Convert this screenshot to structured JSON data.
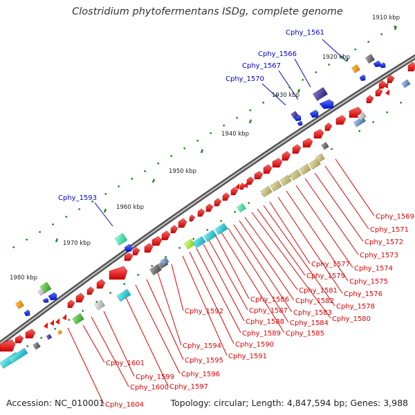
{
  "title": "Clostridium phytofermentans ISDg, complete genome",
  "footer": {
    "accession": "Accession: NC_010001",
    "summary": "Topology: circular; Length: 4,847,594 bp; Genes: 3,988"
  },
  "ticks": [
    "1910 kbp",
    "1920 kbp",
    "1930 kbp",
    "1940 kbp",
    "1950 kbp",
    "1960 kbp",
    "1970 kbp",
    "1980 kbp"
  ],
  "blue_labels": [
    "Cphy_1561",
    "Cphy_1566",
    "Cphy_1567",
    "Cphy_1570",
    "Cphy_1593"
  ],
  "red_labels": [
    "Cphy_1569",
    "Cphy_1571",
    "Cphy_1572",
    "Cphy_1573",
    "Cphy_1574",
    "Cphy_1575",
    "Cphy_1576",
    "Cphy_1577",
    "Cphy_1578",
    "Cphy_1579",
    "Cphy_1580",
    "Cphy_1581",
    "Cphy_1582",
    "Cphy_1583",
    "Cphy_1584",
    "Cphy_1585",
    "Cphy_1586",
    "Cphy_1587",
    "Cphy_1588",
    "Cphy_1589",
    "Cphy_1590",
    "Cphy_1591",
    "Cphy_1592",
    "Cphy_1594",
    "Cphy_1595",
    "Cphy_1596",
    "Cphy_1597",
    "Cphy_1599",
    "Cphy_1600",
    "Cphy_1601",
    "Cphy_1604"
  ],
  "colors": {
    "backbone": "#7a7a7a",
    "forward_cds": "#ee1111",
    "reverse_cds": "#1133ee",
    "label_red": "#dd0000",
    "label_blue": "#0000cc",
    "tick_green": "#1a8a1a"
  }
}
